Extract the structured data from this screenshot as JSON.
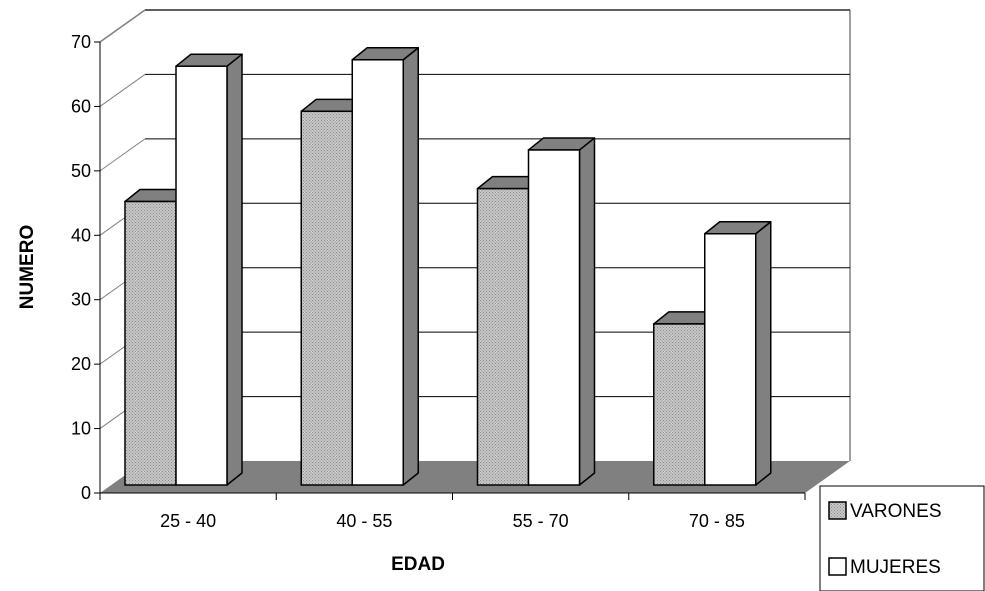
{
  "chart_data": {
    "type": "bar",
    "view": "3d-clustered-column",
    "categories": [
      "25 - 40",
      "40 - 55",
      "55 - 70",
      "70 - 85"
    ],
    "series": [
      {
        "name": "VARONES",
        "values": [
          44,
          58,
          46,
          25
        ],
        "fill": "pattern-dotted-gray",
        "side_color": "#808080"
      },
      {
        "name": "MUJERES",
        "values": [
          65,
          66,
          52,
          39
        ],
        "fill": "#ffffff",
        "side_color": "#808080"
      }
    ],
    "xlabel": "EDAD",
    "ylabel": "NUMERO",
    "ylim": [
      0,
      70
    ],
    "yticks": [
      0,
      10,
      20,
      30,
      40,
      50,
      60,
      70
    ],
    "grid": true,
    "legend_position": "bottom-right",
    "colors": {
      "floor": "#808080",
      "gridline": "#000000",
      "wall_border": "#808080",
      "bar_side": "#808080"
    }
  }
}
